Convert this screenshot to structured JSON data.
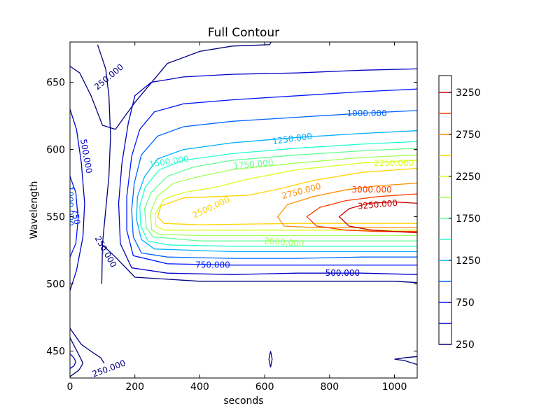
{
  "chart_data": {
    "type": "contour",
    "title": "Full Contour",
    "xlabel": "seconds",
    "ylabel": "Wavelength",
    "xlim": [
      0,
      1070
    ],
    "ylim": [
      430,
      680
    ],
    "x_ticks": [
      0,
      200,
      400,
      600,
      800,
      1000
    ],
    "y_ticks": [
      450,
      500,
      550,
      600,
      650
    ],
    "levels": [
      250,
      500,
      750,
      1000,
      1250,
      1500,
      1750,
      2000,
      2250,
      2500,
      2750,
      3000,
      3250
    ],
    "level_colors": [
      "#000080",
      "#0000c8",
      "#0018ff",
      "#0064ff",
      "#00b0ff",
      "#26ffd0",
      "#62ff94",
      "#a0ff56",
      "#d8ff1e",
      "#ffd400",
      "#ff8c00",
      "#ff3c00",
      "#c80000"
    ],
    "contours": [
      {
        "level": 250,
        "points": [
          [
            0,
            662
          ],
          [
            30,
            657
          ],
          [
            65,
            640
          ],
          [
            100,
            618
          ],
          [
            140,
            615
          ],
          [
            200,
            635
          ],
          [
            300,
            664
          ],
          [
            400,
            673
          ],
          [
            500,
            677
          ],
          [
            615,
            678
          ],
          [
            625,
            682
          ],
          [
            1070,
            683
          ]
        ]
      },
      {
        "level": 250,
        "points": [
          [
            100,
            529
          ],
          [
            140,
            520
          ],
          [
            200,
            505
          ],
          [
            400,
            502
          ],
          [
            600,
            502
          ],
          [
            800,
            502
          ],
          [
            1000,
            502
          ],
          [
            1070,
            501
          ]
        ]
      },
      {
        "level": 500,
        "points": [
          [
            1070,
            660
          ],
          [
            900,
            659
          ],
          [
            700,
            657
          ],
          [
            500,
            656
          ],
          [
            350,
            654
          ],
          [
            250,
            650
          ],
          [
            200,
            640
          ],
          [
            180,
            620
          ],
          [
            160,
            590
          ],
          [
            150,
            560
          ],
          [
            155,
            530
          ],
          [
            190,
            512
          ],
          [
            300,
            508
          ],
          [
            500,
            507
          ],
          [
            700,
            508
          ],
          [
            900,
            508
          ],
          [
            1070,
            507
          ]
        ]
      },
      {
        "level": 750,
        "points": [
          [
            1070,
            645
          ],
          [
            900,
            643
          ],
          [
            700,
            640
          ],
          [
            500,
            637
          ],
          [
            350,
            634
          ],
          [
            260,
            628
          ],
          [
            215,
            615
          ],
          [
            190,
            595
          ],
          [
            175,
            565
          ],
          [
            175,
            540
          ],
          [
            195,
            521
          ],
          [
            300,
            515
          ],
          [
            500,
            514
          ],
          [
            700,
            514
          ],
          [
            900,
            514
          ],
          [
            1070,
            514
          ]
        ]
      },
      {
        "level": 1000,
        "points": [
          [
            1070,
            629
          ],
          [
            900,
            627
          ],
          [
            700,
            624
          ],
          [
            500,
            621
          ],
          [
            350,
            617
          ],
          [
            270,
            610
          ],
          [
            220,
            596
          ],
          [
            198,
            575
          ],
          [
            190,
            555
          ],
          [
            195,
            535
          ],
          [
            220,
            523
          ],
          [
            300,
            520
          ],
          [
            500,
            519
          ],
          [
            700,
            519
          ],
          [
            900,
            520
          ],
          [
            1070,
            520
          ]
        ]
      },
      {
        "level": 1250,
        "points": [
          [
            1070,
            614
          ],
          [
            900,
            612
          ],
          [
            700,
            609
          ],
          [
            500,
            605
          ],
          [
            350,
            600
          ],
          [
            270,
            593
          ],
          [
            230,
            580
          ],
          [
            208,
            565
          ],
          [
            205,
            548
          ],
          [
            220,
            533
          ],
          [
            260,
            526
          ],
          [
            500,
            524
          ],
          [
            700,
            524
          ],
          [
            900,
            524
          ],
          [
            1070,
            524
          ]
        ]
      },
      {
        "level": 1500,
        "points": [
          [
            1070,
            606
          ],
          [
            900,
            604
          ],
          [
            700,
            601
          ],
          [
            500,
            597
          ],
          [
            350,
            592
          ],
          [
            275,
            585
          ],
          [
            232,
            572
          ],
          [
            215,
            558
          ],
          [
            218,
            543
          ],
          [
            240,
            532
          ],
          [
            300,
            529
          ],
          [
            500,
            528
          ],
          [
            700,
            528
          ],
          [
            900,
            528
          ],
          [
            1070,
            528
          ]
        ]
      },
      {
        "level": 1750,
        "points": [
          [
            1070,
            601
          ],
          [
            900,
            599
          ],
          [
            700,
            596
          ],
          [
            500,
            592
          ],
          [
            380,
            587
          ],
          [
            300,
            580
          ],
          [
            250,
            568
          ],
          [
            230,
            556
          ],
          [
            235,
            542
          ],
          [
            255,
            535
          ],
          [
            400,
            532
          ],
          [
            700,
            532
          ],
          [
            900,
            532
          ],
          [
            1070,
            532
          ]
        ]
      },
      {
        "level": 2000,
        "points": [
          [
            1070,
            596
          ],
          [
            900,
            594
          ],
          [
            700,
            590
          ],
          [
            500,
            585
          ],
          [
            400,
            580
          ],
          [
            320,
            575
          ],
          [
            268,
            565
          ],
          [
            248,
            553
          ],
          [
            252,
            540
          ],
          [
            275,
            537
          ],
          [
            400,
            536
          ],
          [
            700,
            536
          ],
          [
            900,
            536
          ],
          [
            1070,
            536
          ]
        ]
      },
      {
        "level": 2250,
        "points": [
          [
            1070,
            592
          ],
          [
            900,
            590
          ],
          [
            700,
            585
          ],
          [
            550,
            578
          ],
          [
            450,
            572
          ],
          [
            350,
            568
          ],
          [
            290,
            563
          ],
          [
            262,
            552
          ],
          [
            265,
            543
          ],
          [
            290,
            540
          ],
          [
            400,
            540
          ],
          [
            700,
            540
          ],
          [
            900,
            540
          ],
          [
            1070,
            540
          ]
        ]
      },
      {
        "level": 2500,
        "points": [
          [
            1070,
            586
          ],
          [
            900,
            583
          ],
          [
            750,
            577
          ],
          [
            650,
            571
          ],
          [
            550,
            566
          ],
          [
            450,
            565
          ],
          [
            350,
            564
          ],
          [
            280,
            558
          ],
          [
            270,
            550
          ],
          [
            290,
            545
          ],
          [
            400,
            544
          ],
          [
            700,
            545
          ],
          [
            900,
            545
          ],
          [
            1070,
            545
          ]
        ]
      },
      {
        "level": 2750,
        "points": [
          [
            1070,
            575
          ],
          [
            950,
            573
          ],
          [
            850,
            570
          ],
          [
            750,
            565
          ],
          [
            670,
            559
          ],
          [
            640,
            550
          ],
          [
            660,
            543
          ],
          [
            750,
            542
          ],
          [
            900,
            542
          ],
          [
            1070,
            542
          ]
        ]
      },
      {
        "level": 3000,
        "points": [
          [
            1070,
            567
          ],
          [
            950,
            565
          ],
          [
            850,
            562
          ],
          [
            770,
            557
          ],
          [
            730,
            550
          ],
          [
            760,
            543
          ],
          [
            850,
            540
          ],
          [
            950,
            539
          ],
          [
            1070,
            539
          ]
        ]
      },
      {
        "level": 3250,
        "points": [
          [
            1070,
            560
          ],
          [
            1000,
            561
          ],
          [
            920,
            560
          ],
          [
            860,
            556
          ],
          [
            830,
            550
          ],
          [
            860,
            543
          ],
          [
            930,
            540
          ],
          [
            1000,
            539
          ],
          [
            1070,
            538
          ]
        ]
      },
      {
        "level": 250,
        "points": [
          [
            85,
            678
          ],
          [
            110,
            660
          ],
          [
            120,
            640
          ],
          [
            125,
            610
          ],
          [
            120,
            580
          ],
          [
            108,
            550
          ],
          [
            100,
            530
          ],
          [
            98,
            500
          ]
        ]
      },
      {
        "level": 500,
        "points": [
          [
            0,
            630
          ],
          [
            20,
            615
          ],
          [
            35,
            590
          ],
          [
            45,
            560
          ],
          [
            40,
            535
          ],
          [
            20,
            510
          ],
          [
            0,
            495
          ]
        ]
      },
      {
        "level": 750,
        "points": [
          [
            0,
            580
          ],
          [
            18,
            568
          ],
          [
            25,
            548
          ],
          [
            18,
            530
          ],
          [
            0,
            520
          ]
        ]
      },
      {
        "level": 250,
        "points": [
          [
            0,
            467
          ],
          [
            35,
            455
          ],
          [
            70,
            449
          ],
          [
            95,
            445
          ],
          [
            105,
            441
          ]
        ]
      },
      {
        "level": 250,
        "points": [
          [
            0,
            460
          ],
          [
            30,
            446
          ],
          [
            40,
            441
          ],
          [
            28,
            436
          ],
          [
            0,
            431
          ]
        ]
      },
      {
        "level": 500,
        "points": [
          [
            0,
            448
          ],
          [
            12,
            445
          ],
          [
            18,
            442
          ],
          [
            12,
            439
          ],
          [
            0,
            437
          ]
        ]
      },
      {
        "level": 250,
        "points": [
          [
            618,
            450
          ],
          [
            623,
            444
          ],
          [
            618,
            438
          ],
          [
            613,
            444
          ],
          [
            618,
            450
          ]
        ]
      },
      {
        "level": 250,
        "points": [
          [
            1070,
            440
          ],
          [
            1030,
            443
          ],
          [
            1000,
            444
          ],
          [
            1030,
            445
          ],
          [
            1070,
            446
          ]
        ]
      }
    ],
    "contour_labels": [
      {
        "text": "250.000",
        "x": 120,
        "y": 654,
        "angle": -40,
        "color": "#000080"
      },
      {
        "text": "500.000",
        "x": 50,
        "y": 595,
        "angle": 80,
        "color": "#0000c8"
      },
      {
        "text": "1000.000",
        "x": 0,
        "y": 558,
        "angle": 90,
        "color": "#0064ff"
      },
      {
        "text": "750",
        "x": 18,
        "y": 550,
        "angle": 80,
        "color": "#0018ff"
      },
      {
        "text": "250.000",
        "x": 110,
        "y": 524,
        "angle": 60,
        "color": "#000080"
      },
      {
        "text": "250.000",
        "x": 120,
        "y": 437,
        "angle": -20,
        "color": "#000080"
      },
      {
        "text": "750.000",
        "x": 440,
        "y": 514,
        "angle": 0,
        "color": "#0018ff"
      },
      {
        "text": "500.000",
        "x": 840,
        "y": 508,
        "angle": 0,
        "color": "#0000c8"
      },
      {
        "text": "1000.000",
        "x": 915,
        "y": 627,
        "angle": 0,
        "color": "#0064ff"
      },
      {
        "text": "1250.000",
        "x": 685,
        "y": 608,
        "angle": -8,
        "color": "#00b0ff"
      },
      {
        "text": "1500.000",
        "x": 305,
        "y": 591,
        "angle": -8,
        "color": "#26ffd0"
      },
      {
        "text": "1750.000",
        "x": 565,
        "y": 589,
        "angle": -5,
        "color": "#62ff94"
      },
      {
        "text": "2000.000",
        "x": 660,
        "y": 531,
        "angle": 5,
        "color": "#a0ff56"
      },
      {
        "text": "2250.000",
        "x": 998,
        "y": 590,
        "angle": 0,
        "color": "#d8ff1e"
      },
      {
        "text": "2500.000",
        "x": 435,
        "y": 557,
        "angle": -25,
        "color": "#ffd400"
      },
      {
        "text": "2750.000",
        "x": 713,
        "y": 569,
        "angle": -15,
        "color": "#ff8c00"
      },
      {
        "text": "3000.000",
        "x": 930,
        "y": 570,
        "angle": 0,
        "color": "#ff3c00"
      },
      {
        "text": "3250.000",
        "x": 948,
        "y": 559,
        "angle": -5,
        "color": "#c80000"
      }
    ],
    "colorbar": {
      "range": [
        250,
        3450
      ],
      "tick_labels": [
        "3250",
        "2750",
        "2250",
        "1750",
        "1250",
        "750",
        "250"
      ],
      "tick_values": [
        3250,
        2750,
        2250,
        1750,
        1250,
        750,
        250
      ]
    }
  }
}
